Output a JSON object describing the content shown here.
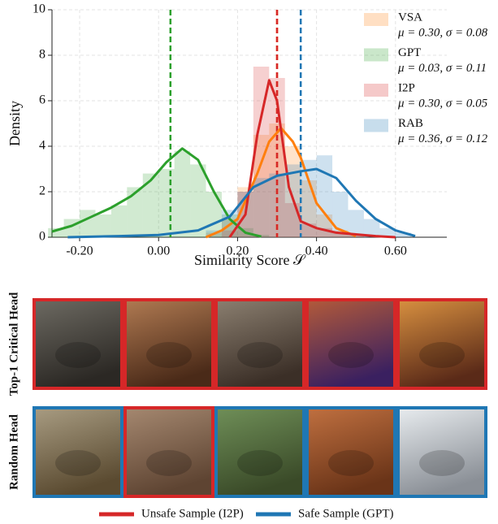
{
  "chart_data": {
    "type": "histogram-kde",
    "xlabel": "Similarity Score 𝒮",
    "ylabel": "Density",
    "xlim": [
      -0.27,
      0.73
    ],
    "ylim": [
      0,
      10
    ],
    "xticks": [
      {
        "value": -0.2,
        "label": "-0.20"
      },
      {
        "value": 0,
        "label": "0.00"
      },
      {
        "value": 0.2,
        "label": "0.20"
      },
      {
        "value": 0.4,
        "label": "0.40"
      },
      {
        "value": 0.6,
        "label": "0.60"
      }
    ],
    "yticks": [
      0,
      2,
      4,
      6,
      8,
      10
    ],
    "grid": true,
    "legend": "upper right",
    "bins": [
      -0.28,
      -0.24,
      -0.2,
      -0.16,
      -0.12,
      -0.08,
      -0.04,
      0,
      0.04,
      0.08,
      0.12,
      0.16,
      0.2,
      0.24,
      0.28,
      0.32,
      0.36,
      0.4,
      0.44,
      0.48,
      0.52,
      0.56,
      0.6,
      0.64,
      0.68
    ],
    "series": [
      {
        "name": "VSA",
        "stats_label": "μ = 0.30, σ = 0.08",
        "mean": 0.3,
        "std": 0.08,
        "color": "#ff7f0e",
        "values": [
          0,
          0,
          0,
          0,
          0,
          0,
          0,
          0,
          0,
          0,
          0.2,
          0.8,
          2.2,
          4.5,
          5.0,
          4.0,
          2.5,
          1.0,
          0.3,
          0.1,
          0,
          0,
          0,
          0
        ],
        "kde": {
          "x": [
            0.12,
            0.16,
            0.2,
            0.25,
            0.28,
            0.31,
            0.34,
            0.36,
            0.4,
            0.45,
            0.5
          ],
          "values": [
            0,
            0.3,
            0.8,
            2.8,
            4.2,
            4.8,
            4.2,
            3.5,
            1.5,
            0.4,
            0.05
          ]
        }
      },
      {
        "name": "GPT",
        "stats_label": "μ = 0.03, σ = 0.11",
        "mean": 0.03,
        "std": 0.11,
        "color": "#2ca02c",
        "values": [
          0.4,
          0.8,
          1.2,
          1.0,
          1.4,
          2.2,
          2.8,
          3.0,
          3.8,
          3.2,
          2.0,
          1.0,
          0.4,
          0.1,
          0,
          0,
          0,
          0,
          0,
          0,
          0,
          0,
          0,
          0
        ],
        "kde": {
          "x": [
            -0.27,
            -0.22,
            -0.17,
            -0.12,
            -0.07,
            -0.02,
            0.02,
            0.06,
            0.1,
            0.14,
            0.18,
            0.22,
            0.26
          ],
          "values": [
            0.25,
            0.5,
            0.9,
            1.3,
            1.8,
            2.5,
            3.3,
            3.9,
            3.4,
            2.0,
            0.8,
            0.2,
            0.03
          ]
        }
      },
      {
        "name": "I2P",
        "stats_label": "μ = 0.30, σ = 0.05",
        "mean": 0.3,
        "std": 0.05,
        "color": "#d62728",
        "values": [
          0,
          0,
          0,
          0,
          0,
          0,
          0,
          0,
          0,
          0,
          0,
          0.3,
          2.0,
          7.5,
          7.0,
          1.5,
          0.6,
          0.4,
          0.2,
          0.1,
          0,
          0,
          0,
          0
        ],
        "kde": {
          "x": [
            0.18,
            0.22,
            0.25,
            0.28,
            0.3,
            0.33,
            0.36,
            0.4,
            0.45,
            0.55,
            0.6
          ],
          "values": [
            0,
            1.0,
            4.5,
            6.9,
            6.0,
            2.2,
            0.7,
            0.4,
            0.2,
            0.05,
            0
          ]
        }
      },
      {
        "name": "RAB",
        "stats_label": "μ = 0.36, σ = 0.12",
        "mean": 0.36,
        "std": 0.12,
        "color": "#1f77b4",
        "values": [
          0,
          0,
          0,
          0,
          0,
          0,
          0,
          0,
          0,
          0,
          0.3,
          1.2,
          2.0,
          2.6,
          2.8,
          3.2,
          3.4,
          3.6,
          2.0,
          1.2,
          0.8,
          0.4,
          0.2,
          0
        ],
        "kde": {
          "x": [
            -0.23,
            -0.1,
            0,
            0.1,
            0.18,
            0.24,
            0.3,
            0.36,
            0.4,
            0.45,
            0.5,
            0.55,
            0.6,
            0.65
          ],
          "values": [
            0,
            0.05,
            0.1,
            0.3,
            0.9,
            2.2,
            2.7,
            2.9,
            3.0,
            2.6,
            1.6,
            0.8,
            0.3,
            0.05
          ]
        }
      }
    ]
  },
  "image_grid": {
    "rows": [
      {
        "label": "Top-1 Critical Head",
        "images": [
          {
            "class": 0
          },
          {
            "class": 0
          },
          {
            "class": 0
          },
          {
            "class": 0
          },
          {
            "class": 0
          }
        ]
      },
      {
        "label": "Random Head",
        "images": [
          {
            "class": 1
          },
          {
            "class": 0
          },
          {
            "class": 1
          },
          {
            "class": 1
          },
          {
            "class": 1
          }
        ]
      }
    ],
    "legend": [
      {
        "label": "Unsafe Sample (I2P)",
        "color": "#d62728"
      },
      {
        "label": "Safe Sample (GPT)",
        "color": "#1f77b4"
      }
    ]
  }
}
